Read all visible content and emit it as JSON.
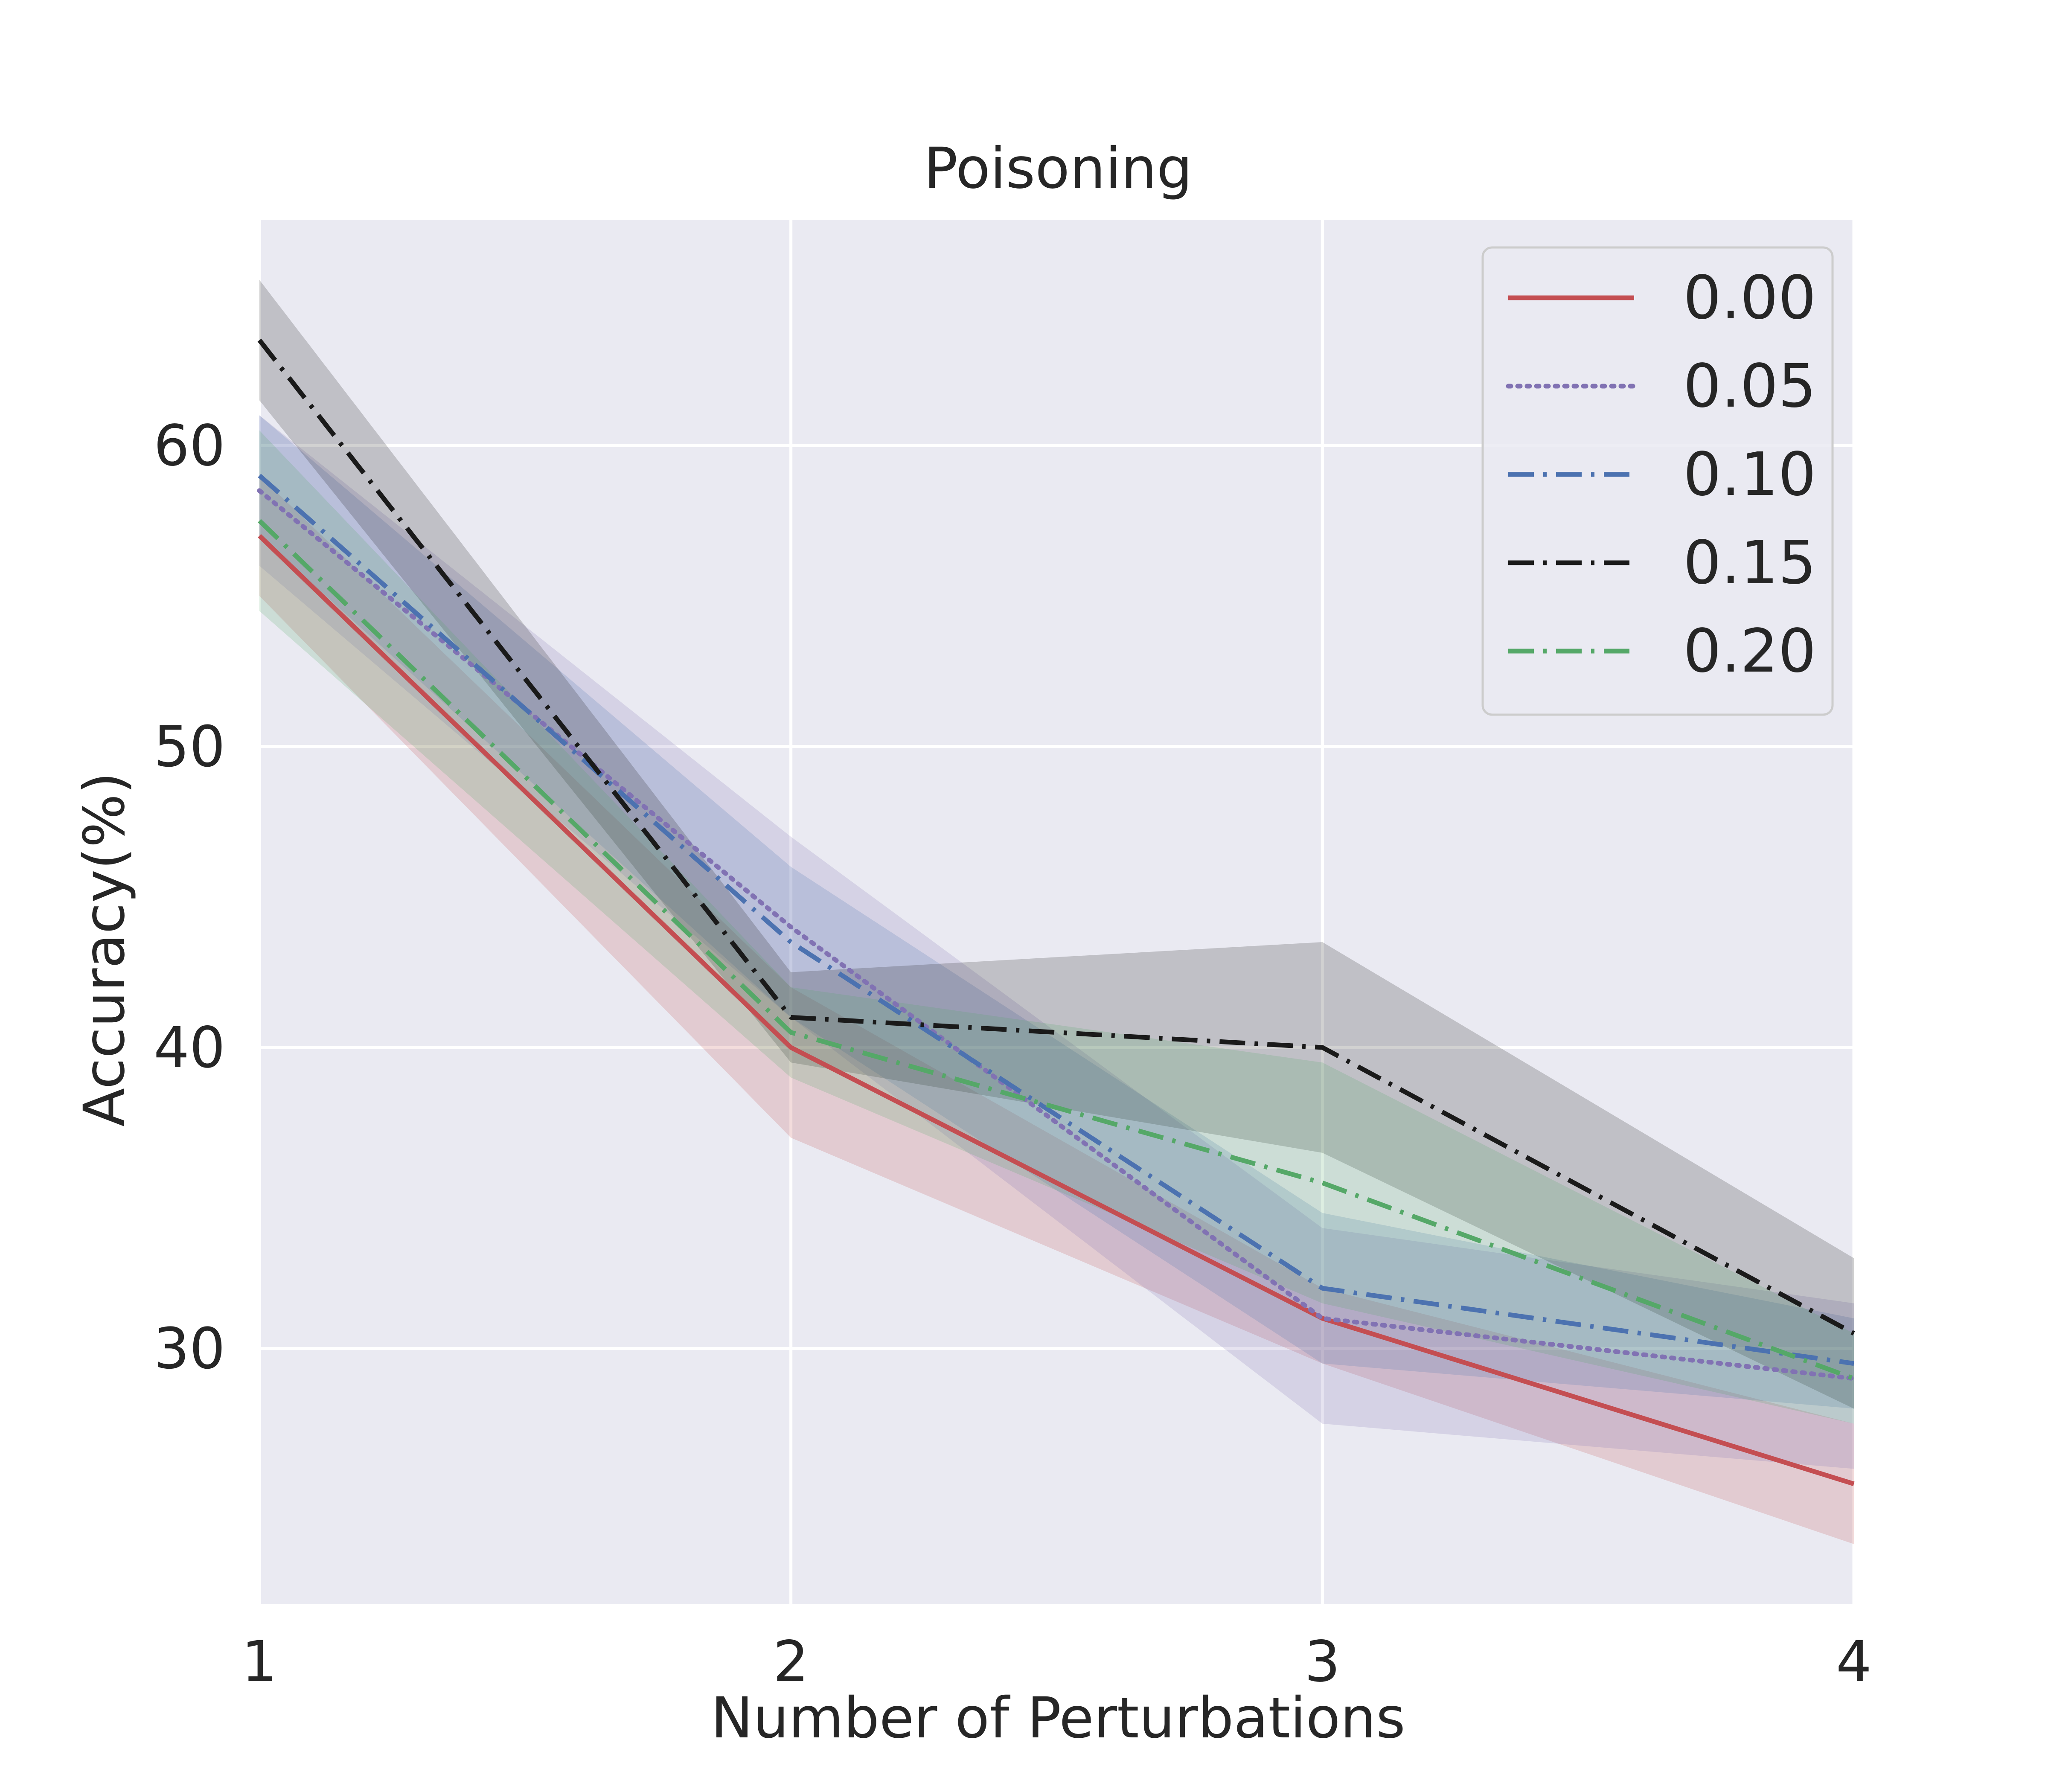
{
  "chart_data": {
    "type": "line",
    "title": "Poisoning",
    "xlabel": "Number of Perturbations",
    "ylabel": "Accuracy(%)",
    "x": [
      1,
      2,
      3,
      4
    ],
    "xlim": [
      1,
      4
    ],
    "ylim": [
      21.5,
      67.5
    ],
    "xticks": [
      "1",
      "2",
      "3",
      "4"
    ],
    "yticks": [
      30,
      40,
      50,
      60
    ],
    "ytick_labels": [
      "30",
      "40",
      "50",
      "60"
    ],
    "grid": true,
    "legend_position": "top-right",
    "series": [
      {
        "name": "0.00",
        "label": "0.00",
        "color": "#c44e52",
        "style": "solid",
        "values": [
          57.0,
          40.0,
          31.0,
          25.5
        ],
        "lower": [
          55.0,
          37.0,
          29.5,
          23.5
        ],
        "upper": [
          59.0,
          42.0,
          32.0,
          27.5
        ]
      },
      {
        "name": "0.05",
        "label": "0.05",
        "color": "#8172b3",
        "style": "dotted",
        "values": [
          58.5,
          44.0,
          31.0,
          29.0
        ],
        "lower": [
          56.0,
          41.0,
          27.5,
          26.0
        ],
        "upper": [
          61.0,
          47.0,
          34.0,
          31.5
        ]
      },
      {
        "name": "0.10",
        "label": "0.10",
        "color": "#4c72b0",
        "style": "dashdot",
        "values": [
          59.0,
          43.5,
          32.0,
          29.5
        ],
        "lower": [
          57.0,
          41.0,
          29.5,
          28.0
        ],
        "upper": [
          61.0,
          46.0,
          34.5,
          31.0
        ]
      },
      {
        "name": "0.15",
        "label": "0.15",
        "color": "#1a1a1a",
        "style": "dashdot",
        "values": [
          63.5,
          41.0,
          40.0,
          30.5
        ],
        "lower": [
          61.5,
          39.5,
          36.5,
          28.0
        ],
        "upper": [
          65.5,
          42.5,
          43.5,
          33.0
        ]
      },
      {
        "name": "0.20",
        "label": "0.20",
        "color": "#55a868",
        "style": "dashdot",
        "values": [
          57.5,
          40.5,
          35.5,
          29.0
        ],
        "lower": [
          54.5,
          39.0,
          31.5,
          27.5
        ],
        "upper": [
          60.5,
          42.0,
          39.5,
          30.5
        ]
      }
    ]
  }
}
